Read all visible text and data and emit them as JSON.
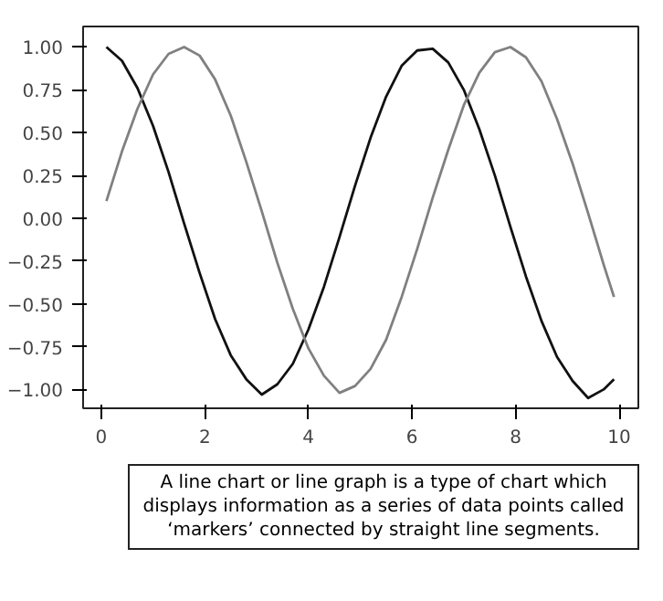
{
  "chart_data": {
    "type": "line",
    "x": [
      0.1,
      0.4,
      0.7,
      1.0,
      1.3,
      1.6,
      1.9,
      2.2,
      2.5,
      2.8,
      3.1,
      3.4,
      3.7,
      4.0,
      4.3,
      4.6,
      4.9,
      5.2,
      5.5,
      5.8,
      6.1,
      6.4,
      6.7,
      7.0,
      7.3,
      7.6,
      7.9,
      8.2,
      8.5,
      8.8,
      9.1,
      9.4,
      9.7,
      9.9
    ],
    "series": [
      {
        "color": "#111111",
        "values": [
          1.0,
          0.92,
          0.76,
          0.54,
          0.27,
          -0.03,
          -0.32,
          -0.59,
          -0.8,
          -0.94,
          -1.03,
          -0.97,
          -0.85,
          -0.65,
          -0.4,
          -0.11,
          0.19,
          0.47,
          0.71,
          0.89,
          0.98,
          0.99,
          0.91,
          0.75,
          0.52,
          0.25,
          -0.05,
          -0.34,
          -0.6,
          -0.81,
          -0.95,
          -1.05,
          -1.0,
          -0.94
        ]
      },
      {
        "color": "#808080",
        "values": [
          0.1,
          0.39,
          0.64,
          0.84,
          0.96,
          1.0,
          0.95,
          0.81,
          0.6,
          0.33,
          0.04,
          -0.26,
          -0.53,
          -0.76,
          -0.92,
          -1.02,
          -0.98,
          -0.88,
          -0.71,
          -0.46,
          -0.18,
          0.12,
          0.4,
          0.66,
          0.85,
          0.97,
          1.0,
          0.94,
          0.8,
          0.58,
          0.32,
          0.03,
          -0.27,
          -0.46
        ]
      }
    ],
    "xlim": [
      -0.35,
      10.37
    ],
    "ylim": [
      -1.11,
      1.12
    ],
    "xticks": [
      0,
      2,
      4,
      6,
      8,
      10
    ],
    "yticks": [
      {
        "value": 1,
        "label": "1.00"
      },
      {
        "value": 0.75,
        "label": "0.75"
      },
      {
        "value": 0.5,
        "label": "0.50"
      },
      {
        "value": 0.25,
        "label": "0.25"
      },
      {
        "value": 0,
        "label": "0.00"
      },
      {
        "value": -0.25,
        "label": "−0.25"
      },
      {
        "value": -0.5,
        "label": "−0.50"
      },
      {
        "value": -0.75,
        "label": "−0.75"
      },
      {
        "value": -1,
        "label": "−1.00"
      }
    ],
    "marker": "none",
    "line_style": "solid",
    "annotations": [
      "A line chart or line graph is a type of chart which displays information as a series of data points called ‘markers’ connected by straight line segments."
    ]
  }
}
